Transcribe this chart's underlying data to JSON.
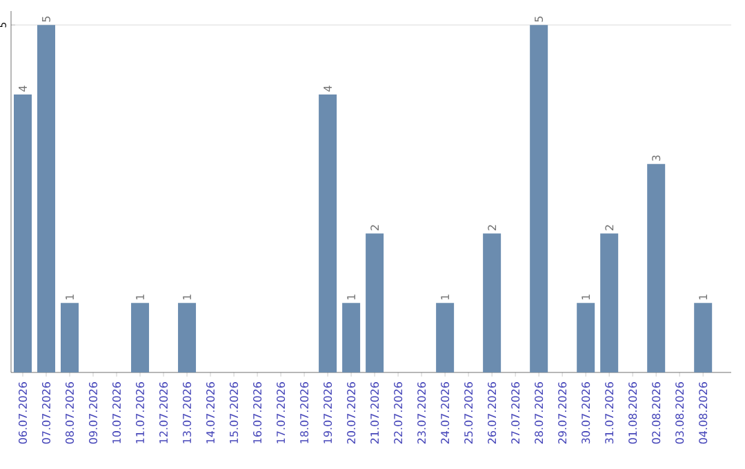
{
  "chart_data": {
    "type": "bar",
    "categories": [
      "06.07.2026",
      "07.07.2026",
      "08.07.2026",
      "09.07.2026",
      "10.07.2026",
      "11.07.2026",
      "12.07.2026",
      "13.07.2026",
      "14.07.2026",
      "15.07.2026",
      "16.07.2026",
      "17.07.2026",
      "18.07.2026",
      "19.07.2026",
      "20.07.2026",
      "21.07.2026",
      "22.07.2026",
      "23.07.2026",
      "24.07.2026",
      "25.07.2026",
      "26.07.2026",
      "27.07.2026",
      "28.07.2026",
      "29.07.2026",
      "30.07.2026",
      "31.07.2026",
      "01.08.2026",
      "02.08.2026",
      "03.08.2026",
      "04.08.2026"
    ],
    "values": [
      4,
      5,
      1,
      null,
      null,
      1,
      null,
      1,
      null,
      null,
      null,
      null,
      null,
      4,
      1,
      2,
      null,
      null,
      1,
      null,
      2,
      null,
      5,
      null,
      1,
      2,
      null,
      3,
      null,
      1
    ],
    "color": "#6b8caf",
    "ylim": [
      0,
      5.2
    ],
    "yticks": [
      5
    ],
    "grid": "y",
    "data_labels": true
  }
}
